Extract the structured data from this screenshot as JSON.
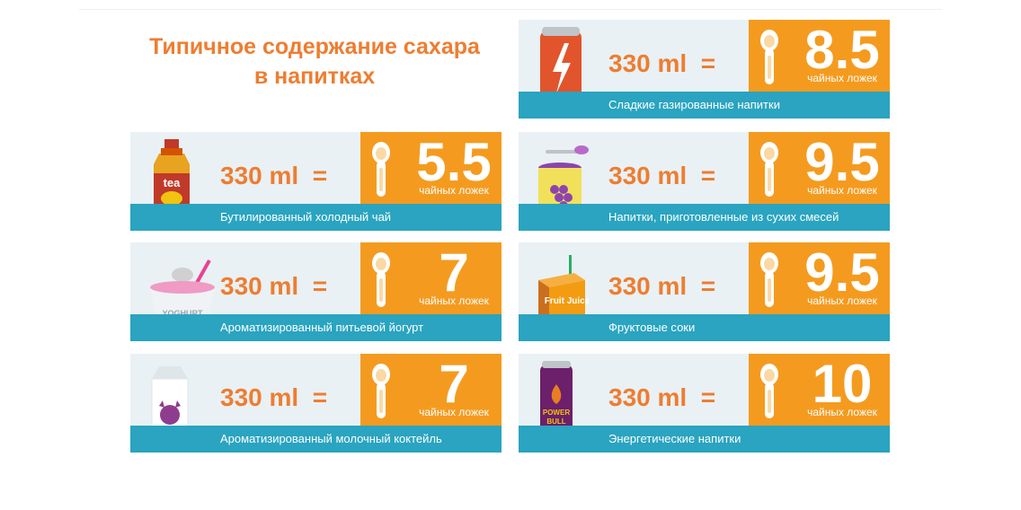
{
  "title": {
    "line1": "Типичное содержание сахара",
    "line2": "в напитках"
  },
  "colors": {
    "orange": "#f49b1f",
    "title": "#ee7d31",
    "bar": "#2aa4c0",
    "card": "#e9f1f4"
  },
  "cards": [
    {
      "id": "soda",
      "icon": "soda-can-icon",
      "amount": "330 ml",
      "equals": "=",
      "value": "8.5",
      "unit": "чайных ложек",
      "label": "Сладкие газированные напитки"
    },
    {
      "id": "tea",
      "icon": "tea-bottle-icon",
      "amount": "330 ml",
      "equals": "=",
      "value": "5.5",
      "unit": "чайных ложек",
      "label": "Бутилированный холодный чай",
      "icon_text": "tea"
    },
    {
      "id": "powder",
      "icon": "powder-drink-can-icon",
      "amount": "330 ml",
      "equals": "=",
      "value": "9.5",
      "unit": "чайных ложек",
      "label": "Напитки, приготовленные из сухих смесей"
    },
    {
      "id": "yogurt",
      "icon": "yogurt-cup-icon",
      "amount": "330 ml",
      "equals": "=",
      "value": "7",
      "unit": "чайных ложек",
      "label": "Ароматизированный питьевой йогурт",
      "icon_text": "YOGHURT"
    },
    {
      "id": "juice",
      "icon": "juice-box-icon",
      "amount": "330 ml",
      "equals": "=",
      "value": "9.5",
      "unit": "чайных ложек",
      "label": "Фруктовые соки",
      "icon_text": "Fruit Juice"
    },
    {
      "id": "milk",
      "icon": "milk-carton-icon",
      "amount": "330 ml",
      "equals": "=",
      "value": "7",
      "unit": "чайных ложек",
      "label": "Ароматизированный молочный коктейль"
    },
    {
      "id": "energy",
      "icon": "energy-drink-can-icon",
      "amount": "330 ml",
      "equals": "=",
      "value": "10",
      "unit": "чайных ложек",
      "label": "Энергетические напитки",
      "icon_text": "POWER BULL"
    }
  ]
}
